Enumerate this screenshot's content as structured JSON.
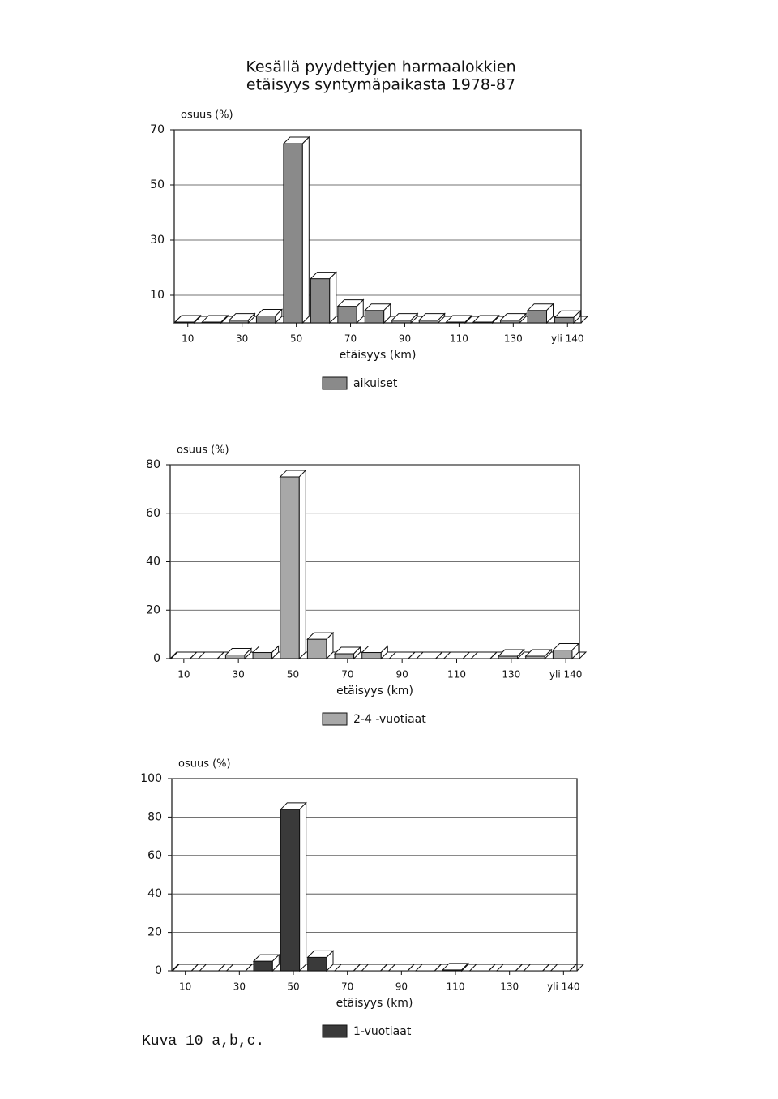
{
  "chart_data": [
    {
      "type": "bar",
      "title": [
        "Kesällä pyydettyjen harmaalokkien",
        "etäisyys syntymäpaikasta 1978-87"
      ],
      "y_label": "osuus (%)",
      "x_label": "etäisyys (km)",
      "categories": [
        "10",
        null,
        "30",
        null,
        "50",
        null,
        "70",
        null,
        "90",
        null,
        "110",
        null,
        "130",
        null,
        "yli 140"
      ],
      "series": [
        {
          "name": "aikuiset",
          "color": "#8a8a8a",
          "values": [
            0.3,
            0.3,
            1,
            2.5,
            65,
            16,
            6,
            4.5,
            1,
            1,
            0.3,
            0.3,
            1,
            4.5,
            2
          ]
        }
      ],
      "ylim": [
        0,
        70
      ],
      "yticks": [
        10,
        30,
        50,
        70
      ],
      "grid": true
    },
    {
      "type": "bar",
      "y_label": "osuus (%)",
      "x_label": "etäisyys (km)",
      "categories": [
        "10",
        null,
        "30",
        null,
        "50",
        null,
        "70",
        null,
        "90",
        null,
        "110",
        null,
        "130",
        null,
        "yli 140"
      ],
      "series": [
        {
          "name": "2-4 -vuotiaat",
          "color": "#a8a8a8",
          "values": [
            0,
            0,
            1.5,
            2.5,
            75,
            8,
            2,
            2.5,
            0,
            0,
            0,
            0,
            1,
            1,
            3.5
          ]
        }
      ],
      "ylim": [
        0,
        80
      ],
      "yticks": [
        0,
        20,
        40,
        60,
        80
      ],
      "grid": true
    },
    {
      "type": "bar",
      "y_label": "osuus (%)",
      "x_label": "etäisyys (km)",
      "categories": [
        "10",
        null,
        "30",
        null,
        "50",
        null,
        "70",
        null,
        "90",
        null,
        "110",
        null,
        "130",
        null,
        "yli 140"
      ],
      "series": [
        {
          "name": "1-vuotiaat",
          "color": "#3a3a3a",
          "values": [
            0,
            0,
            0,
            5,
            84,
            7,
            0,
            0,
            0,
            0,
            0.5,
            0,
            0,
            0,
            0
          ]
        }
      ],
      "ylim": [
        0,
        100
      ],
      "yticks": [
        0,
        20,
        40,
        60,
        80,
        100
      ],
      "grid": true
    }
  ],
  "caption": "Kuva 10 a,b,c."
}
